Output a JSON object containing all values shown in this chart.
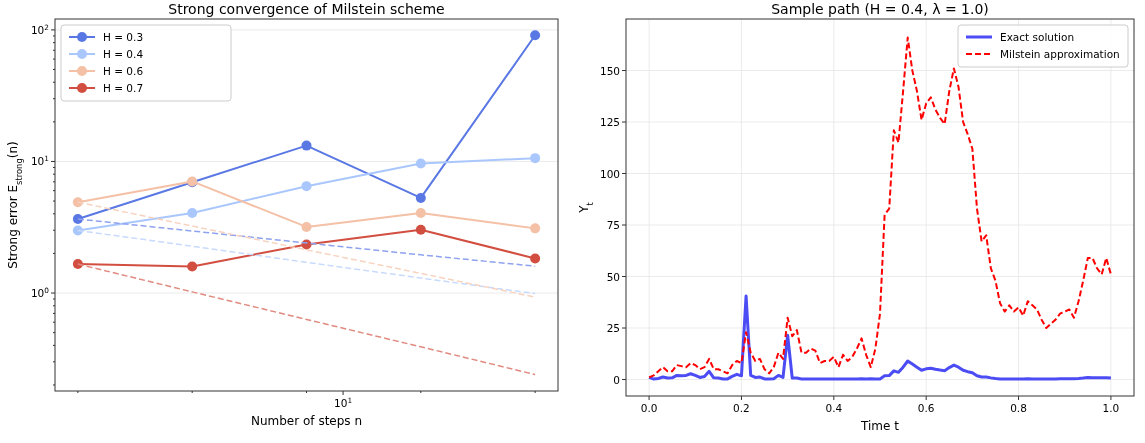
{
  "chart_data": [
    {
      "type": "line",
      "title": "Strong convergence of Milstein scheme",
      "xlabel": "Number of steps n",
      "ylabel": "Strong error E$_{strong}$(n)",
      "log": "y",
      "categories": [
        null,
        null,
        null,
        null,
        null
      ],
      "annotations": [
        "10$^{1}$"
      ],
      "ylim": [
        0.18,
        121
      ],
      "yticks": [
        {
          "value": 0.2,
          "label": null
        },
        {
          "value": 0.3,
          "label": null
        },
        {
          "value": 0.4,
          "label": null
        },
        {
          "value": 0.5,
          "label": null
        },
        {
          "value": 0.6,
          "label": null
        },
        {
          "value": 0.7,
          "label": null
        },
        {
          "value": 0.8,
          "label": null
        },
        {
          "value": 0.9,
          "label": null
        },
        {
          "value": 1,
          "label": "10$^{0}$"
        },
        {
          "value": 2,
          "label": null
        },
        {
          "value": 3,
          "label": null
        },
        {
          "value": 4,
          "label": null
        },
        {
          "value": 5,
          "label": null
        },
        {
          "value": 6,
          "label": null
        },
        {
          "value": 7,
          "label": null
        },
        {
          "value": 8,
          "label": null
        },
        {
          "value": 9,
          "label": null
        },
        {
          "value": 10,
          "label": "10$^{1}$"
        },
        {
          "value": 20,
          "label": null
        },
        {
          "value": 30,
          "label": null
        },
        {
          "value": 40,
          "label": null
        },
        {
          "value": 50,
          "label": null
        },
        {
          "value": 60,
          "label": null
        },
        {
          "value": 70,
          "label": null
        },
        {
          "value": 80,
          "label": null
        },
        {
          "value": 90,
          "label": null
        },
        {
          "value": 100,
          "label": "10$^{2}$"
        }
      ],
      "grid": "y",
      "legend": "top left",
      "series": [
        {
          "name": "H = 0.3",
          "color": "#5a78e4",
          "values": [
            3.65,
            6.95,
            13.2,
            5.28,
            91
          ],
          "marker": "circle",
          "line_style": "solid"
        },
        {
          "name": "H = 0.4",
          "color": "#aac7fd",
          "values": [
            2.99,
            4.06,
            6.49,
            9.64,
            10.6
          ],
          "marker": "circle",
          "line_style": "solid"
        },
        {
          "name": "H = 0.6",
          "color": "#f4c0a6",
          "values": [
            4.9,
            7.05,
            3.18,
            4.06,
            3.1
          ],
          "marker": "circle",
          "line_style": "solid"
        },
        {
          "name": "H = 0.7",
          "color": "#d24e40",
          "values": [
            1.66,
            1.59,
            2.34,
            3.03,
            1.83
          ],
          "marker": "circle",
          "line_style": "solid"
        },
        {
          "color": "#8ea2ee",
          "values": [
            3.65,
            2.96,
            2.4,
            1.95,
            1.6
          ],
          "marker": "none",
          "line_style": "dashed"
        },
        {
          "color": "#c8dafd",
          "values": [
            2.99,
            2.27,
            1.71,
            1.3,
            0.99
          ],
          "marker": "none",
          "line_style": "dashed"
        },
        {
          "color": "#f7d3bf",
          "values": [
            4.9,
            3.23,
            2.13,
            1.41,
            0.93
          ],
          "marker": "none",
          "line_style": "dashed"
        },
        {
          "color": "#e08a80",
          "values": [
            1.66,
            1.02,
            0.63,
            0.39,
            0.24
          ],
          "marker": "none",
          "line_style": "dashed"
        }
      ]
    },
    {
      "type": "line",
      "title": "Sample path (H = 0.4, λ = 1.0)",
      "xlabel": "Time t",
      "ylabel": "Y$_{t}$",
      "xlim": [
        -0.05,
        1.05
      ],
      "ylim": [
        -8,
        175
      ],
      "xticks": [
        {
          "value": 0,
          "label": "0.0"
        },
        {
          "value": 0.2,
          "label": "0.2"
        },
        {
          "value": 0.4,
          "label": "0.4"
        },
        {
          "value": 0.6,
          "label": "0.6"
        },
        {
          "value": 0.8,
          "label": "0.8"
        },
        {
          "value": 1,
          "label": "1.0"
        }
      ],
      "yticks": [
        0,
        25,
        50,
        75,
        100,
        125,
        150
      ],
      "grid": true,
      "legend": "top right",
      "series": [
        {
          "name": "Exact solution",
          "color": "#4c4cf5",
          "marker": "none",
          "line_style": "solid",
          "x": [
            0,
            0.01,
            0.02,
            0.03,
            0.04,
            0.05,
            0.06,
            0.07,
            0.08,
            0.09,
            0.1,
            0.11,
            0.12,
            0.13,
            0.14,
            0.15,
            0.16,
            0.17,
            0.18,
            0.19,
            0.2,
            0.21,
            0.22,
            0.23,
            0.24,
            0.25,
            0.26,
            0.27,
            0.28,
            0.29,
            0.3,
            0.31,
            0.32,
            0.33,
            0.34,
            0.35,
            0.36,
            0.37,
            0.38,
            0.39,
            0.4,
            0.41,
            0.42,
            0.43,
            0.44,
            0.45,
            0.46,
            0.47,
            0.48,
            0.49,
            0.5,
            0.51,
            0.52,
            0.53,
            0.54,
            0.55,
            0.56,
            0.57,
            0.58,
            0.59,
            0.6,
            0.61,
            0.62,
            0.63,
            0.64,
            0.65,
            0.66,
            0.67,
            0.68,
            0.69,
            0.7,
            0.71,
            0.72,
            0.73,
            0.74,
            0.75,
            0.76,
            0.77,
            0.78,
            0.79,
            0.8,
            0.81,
            0.82,
            0.83,
            0.84,
            0.85,
            0.86,
            0.87,
            0.88,
            0.89,
            0.9,
            0.91,
            0.92,
            0.93,
            0.94,
            0.95,
            0.96,
            0.97,
            0.98,
            0.99,
            1
          ],
          "values": [
            1,
            0.2,
            0.5,
            1.2,
            0.7,
            0.8,
            2,
            1.8,
            2,
            2.8,
            2,
            1,
            1.5,
            4,
            0.8,
            0.7,
            0.3,
            0.3,
            1.5,
            2.5,
            1.8,
            40.5,
            2,
            1,
            1.2,
            0.3,
            0.2,
            0.4,
            2,
            1,
            21.5,
            0.7,
            0.7,
            0.3,
            0.3,
            0.3,
            0.3,
            0.3,
            0.3,
            0.3,
            0.3,
            0.3,
            0.3,
            0.3,
            0.3,
            0.3,
            0.4,
            0.3,
            0.4,
            0.3,
            0.3,
            1.8,
            1.9,
            4.2,
            3.5,
            6,
            9,
            7.5,
            6,
            4.5,
            5.2,
            5.5,
            5,
            4.6,
            4.3,
            5.8,
            7,
            6,
            4.5,
            3.8,
            3.3,
            1.8,
            1.2,
            1.2,
            0.8,
            0.5,
            0.3,
            0.3,
            0.3,
            0.3,
            0.3,
            0.3,
            0.4,
            0.3,
            0.3,
            0.3,
            0.3,
            0.3,
            0.3,
            0.4,
            0.4,
            0.4,
            0.4,
            0.5,
            0.7,
            1,
            0.9,
            0.8,
            0.8,
            0.9,
            0.7
          ]
        },
        {
          "name": "Milstein approximation",
          "color": "#ff0000",
          "marker": "none",
          "line_style": "dashed",
          "x": [
            0,
            0.01,
            0.02,
            0.03,
            0.04,
            0.05,
            0.06,
            0.07,
            0.08,
            0.09,
            0.1,
            0.11,
            0.12,
            0.13,
            0.14,
            0.15,
            0.16,
            0.17,
            0.18,
            0.19,
            0.2,
            0.21,
            0.22,
            0.23,
            0.24,
            0.25,
            0.26,
            0.27,
            0.28,
            0.29,
            0.3,
            0.31,
            0.32,
            0.33,
            0.34,
            0.35,
            0.36,
            0.37,
            0.38,
            0.39,
            0.4,
            0.41,
            0.42,
            0.43,
            0.44,
            0.45,
            0.46,
            0.47,
            0.48,
            0.49,
            0.5,
            0.51,
            0.52,
            0.53,
            0.54,
            0.55,
            0.56,
            0.57,
            0.58,
            0.59,
            0.6,
            0.61,
            0.62,
            0.63,
            0.64,
            0.65,
            0.66,
            0.67,
            0.68,
            0.69,
            0.7,
            0.71,
            0.72,
            0.73,
            0.74,
            0.75,
            0.76,
            0.77,
            0.78,
            0.79,
            0.8,
            0.81,
            0.82,
            0.83,
            0.84,
            0.85,
            0.86,
            0.87,
            0.88,
            0.89,
            0.9,
            0.91,
            0.92,
            0.93,
            0.94,
            0.95,
            0.96,
            0.97,
            0.98,
            0.99,
            1
          ],
          "values": [
            1,
            2,
            4,
            6,
            4,
            4,
            7,
            6.5,
            6,
            8,
            7,
            5,
            6,
            10,
            5,
            5,
            4,
            3,
            7,
            9,
            8,
            23,
            13,
            9,
            10,
            5,
            3,
            6,
            13,
            10,
            30,
            21,
            24,
            13,
            13,
            15,
            14,
            8,
            9,
            9,
            11,
            6,
            12,
            9,
            11,
            15,
            20,
            12,
            6,
            15,
            32,
            80,
            83,
            121,
            115,
            140,
            166,
            150,
            140,
            126,
            134,
            137,
            131,
            127,
            124,
            140,
            151,
            142,
            125,
            119,
            112,
            83,
            67,
            70,
            54,
            48,
            37,
            33,
            36,
            33,
            35,
            31,
            38,
            36,
            34,
            29,
            25,
            27,
            29,
            32,
            33,
            34,
            30,
            38,
            48,
            59,
            59,
            54,
            51,
            59,
            51
          ]
        }
      ]
    }
  ]
}
